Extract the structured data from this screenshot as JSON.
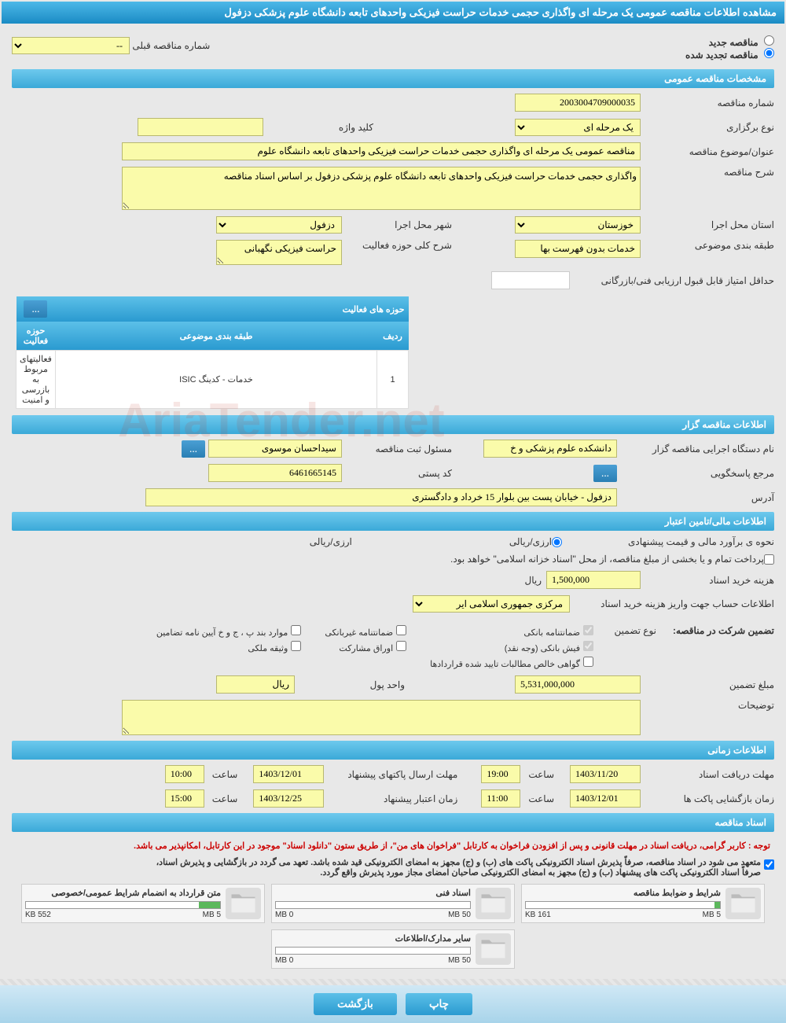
{
  "page_title": "مشاهده اطلاعات مناقصه عمومی یک مرحله ای واگذاری حجمی خدمات حراست فیزیکی واحدهای تابعه دانشگاه علوم پزشکی دزفول",
  "radios": {
    "new_tender": "مناقصه جدید",
    "renewed_tender": "مناقصه تجدید شده"
  },
  "prev_tender_label": "شماره مناقصه قبلی",
  "prev_tender_value": "--",
  "sections": {
    "general": "مشخصات مناقصه عمومی",
    "holder": "اطلاعات مناقصه گزار",
    "financial": "اطلاعات مالی/تامین اعتبار",
    "time": "اطلاعات زمانی",
    "docs": "اسناد مناقصه"
  },
  "general": {
    "tender_no_label": "شماره مناقصه",
    "tender_no": "2003004709000035",
    "type_label": "نوع برگزاری",
    "type_value": "یک مرحله ای",
    "keyword_label": "کلید واژه",
    "keyword": "",
    "title_label": "عنوان/موضوع مناقصه",
    "title_value": "مناقصه عمومی یک مرحله ای واگذاری حجمی خدمات حراست فیزیکی واحدهای تابعه دانشگاه علوم",
    "desc_label": "شرح مناقصه",
    "desc_value": "واگذاری حجمی خدمات حراست فیزیکی واحدهای تابعه دانشگاه علوم پزشکی دزفول بر اساس اسناد مناقصه",
    "province_label": "استان محل اجرا",
    "province": "خوزستان",
    "city_label": "شهر محل اجرا",
    "city": "دزفول",
    "category_label": "طبقه بندی موضوعی",
    "category": "خدمات بدون فهرست بها",
    "field_label": "شرح کلی حوزه فعالیت",
    "field": "حراست فیزیکی نگهبانی",
    "min_score_label": "حداقل امتیاز قابل قبول ارزیابی فنی/بازرگانی",
    "min_score": ""
  },
  "activity_table": {
    "header": "حوزه های فعالیت",
    "more": "...",
    "cols": [
      "ردیف",
      "طبقه بندی موضوعی",
      "حوزه فعالیت"
    ],
    "rows": [
      [
        "1",
        "خدمات - کدینگ ISIC",
        "فعالیتهای مربوط به بازرسی و امنیت"
      ]
    ]
  },
  "holder": {
    "org_label": "نام دستگاه اجرایی مناقصه گزار",
    "org": "دانشکده علوم پزشکی و خ",
    "registrar_label": "مسئول ثبت مناقصه",
    "registrar": "سیداحسان موسوی",
    "response_label": "مرجع پاسخگویی",
    "response_btn": "...",
    "postcode_label": "کد پستی",
    "postcode": "6461665145",
    "address_label": "آدرس",
    "address": "دزفول - خیابان پست بین بلوار 15 خرداد و دادگستری"
  },
  "financial": {
    "method_label": "نحوه ی برآورد مالی و قیمت پیشنهادی",
    "method_value": "ارزی/ریالی",
    "treasury_note": "پرداخت تمام و یا بخشی از مبلغ مناقصه، از محل \"اسناد خزانه اسلامی\" خواهد بود.",
    "doc_cost_label": "هزینه خرید اسناد",
    "doc_cost": "1,500,000",
    "rial": "ریال",
    "account_label": "اطلاعات حساب جهت واریز هزینه خرید اسناد",
    "account": "مرکزی جمهوری اسلامی ایر",
    "guarantee_header": "تضمین شرکت در مناقصه:",
    "guarantee_type_label": "نوع تضمین",
    "guarantees": {
      "bank": "ضمانتنامه بانکی",
      "nonbank": "ضمانتنامه غیربانکی",
      "clause": "موارد بند پ ، ج و خ آیین نامه تضامین",
      "cash": "فیش بانکی (وجه نقد)",
      "bonds": "اوراق مشارکت",
      "property": "وثیقه ملکی",
      "cert": "گواهی خالص مطالبات تایید شده قراردادها"
    },
    "guarantee_amount_label": "مبلغ تضمین",
    "guarantee_amount": "5,531,000,000",
    "currency_label": "واحد پول",
    "currency": "ریال",
    "notes_label": "توضیحات",
    "notes": ""
  },
  "time": {
    "doc_deadline_label": "مهلت دریافت اسناد",
    "doc_deadline_date": "1403/11/20",
    "doc_deadline_time": "19:00",
    "time_label": "ساعت",
    "envelope_label": "مهلت ارسال پاکتهای پیشنهاد",
    "envelope_date": "1403/12/01",
    "envelope_time": "10:00",
    "opening_label": "زمان بازگشایی پاکت ها",
    "opening_date": "1403/12/01",
    "opening_time": "11:00",
    "validity_label": "زمان اعتبار پیشنهاد",
    "validity_date": "1403/12/25",
    "validity_time": "15:00"
  },
  "docs": {
    "red_notice": "توجه : کاربر گرامی، دریافت اسناد در مهلت قانونی و پس از افزودن فراخوان به کارتابل \"فراخوان های من\"، از طریق ستون \"دانلود اسناد\" موجود در این کارتابل، امکانپذیر می باشد.",
    "black_notice1": "متعهد می شود در اسناد مناقصه، صرفاً پذیرش اسناد الکترونیکی پاکت های (ب) و (ج) مجهز به امضای الکترونیکی قید شده باشد. تعهد می گردد در بازگشایی و پذیرش اسناد،",
    "black_notice2": "صرفاً اسناد الکترونیکی پاکت های پیشنهاد (ب) و (ج) مجهز به امضای الکترونیکی صاحبان امضای مجاز مورد پذیرش واقع گردد.",
    "files": [
      {
        "title": "شرایط و ضوابط مناقصه",
        "used": "161 KB",
        "total": "5 MB",
        "pct": 3
      },
      {
        "title": "اسناد فنی",
        "used": "0 MB",
        "total": "50 MB",
        "pct": 0
      },
      {
        "title": "متن قرارداد به انضمام شرایط عمومی/خصوصی",
        "used": "552 KB",
        "total": "5 MB",
        "pct": 11
      },
      {
        "title": "سایر مدارک/اطلاعات",
        "used": "0 MB",
        "total": "50 MB",
        "pct": 0
      }
    ]
  },
  "buttons": {
    "print": "چاپ",
    "back": "بازگشت"
  },
  "colors": {
    "header_grad_top": "#6ec9ed",
    "header_grad_bot": "#3ba9d8",
    "yellow_bg": "#fafbaa",
    "page_bg": "#e8e8e8"
  }
}
